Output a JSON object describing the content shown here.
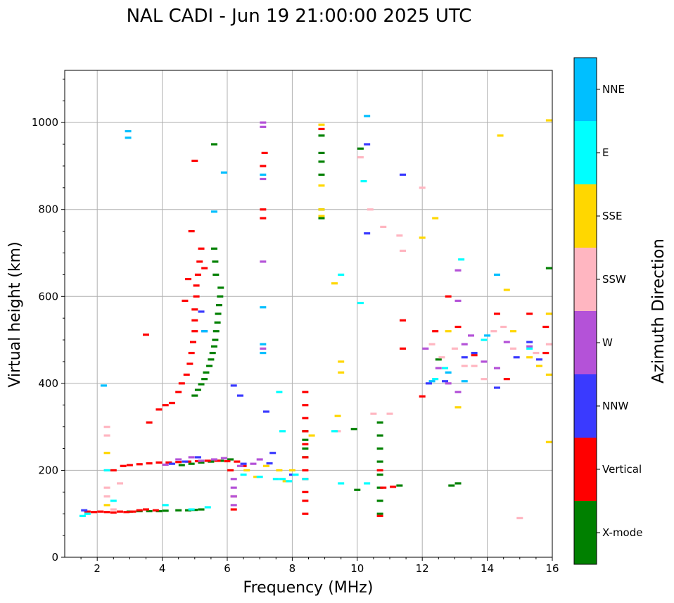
{
  "chart_data": {
    "type": "scatter",
    "title": "NAL CADI - Jun 19 21:00:00 2025 UTC",
    "xlabel": "Frequency (MHz)",
    "ylabel": "Virtual height (km)",
    "xlim": [
      1,
      16
    ],
    "ylim": [
      0,
      1120
    ],
    "xticks": [
      2,
      4,
      6,
      8,
      10,
      12,
      14,
      16
    ],
    "yticks": [
      0,
      200,
      400,
      600,
      800,
      1000
    ],
    "grid": true,
    "colorbar": {
      "title": "Azimuth Direction",
      "categories": [
        {
          "label": "X-mode",
          "color": "#008000"
        },
        {
          "label": "Vertical",
          "color": "#ff0000"
        },
        {
          "label": "NNW",
          "color": "#3a3aff"
        },
        {
          "label": "W",
          "color": "#b452d8"
        },
        {
          "label": "SSW",
          "color": "#ffb6c1"
        },
        {
          "label": "SSE",
          "color": "#ffd700"
        },
        {
          "label": "E",
          "color": "#00ffff"
        },
        {
          "label": "NNE",
          "color": "#00bfff"
        }
      ]
    },
    "series": [
      {
        "name": "X-mode",
        "points": [
          [
            3.0,
            105
          ],
          [
            3.3,
            106
          ],
          [
            3.6,
            106
          ],
          [
            3.9,
            106
          ],
          [
            4.1,
            107
          ],
          [
            4.5,
            108
          ],
          [
            4.8,
            108
          ],
          [
            5.0,
            109
          ],
          [
            5.2,
            110
          ],
          [
            4.6,
            212
          ],
          [
            4.9,
            215
          ],
          [
            5.2,
            218
          ],
          [
            5.5,
            220
          ],
          [
            5.8,
            222
          ],
          [
            6.1,
            225
          ],
          [
            5.0,
            372
          ],
          [
            5.1,
            385
          ],
          [
            5.2,
            398
          ],
          [
            5.3,
            410
          ],
          [
            5.35,
            425
          ],
          [
            5.45,
            440
          ],
          [
            5.5,
            455
          ],
          [
            5.55,
            470
          ],
          [
            5.6,
            485
          ],
          [
            5.63,
            500
          ],
          [
            5.66,
            520
          ],
          [
            5.7,
            540
          ],
          [
            5.72,
            560
          ],
          [
            5.75,
            580
          ],
          [
            5.78,
            600
          ],
          [
            5.8,
            620
          ],
          [
            5.65,
            650
          ],
          [
            5.63,
            680
          ],
          [
            5.6,
            710
          ],
          [
            8.4,
            250
          ],
          [
            8.4,
            270
          ],
          [
            8.4,
            290
          ],
          [
            8.4,
            230
          ],
          [
            8.9,
            780
          ],
          [
            8.9,
            800
          ],
          [
            8.9,
            880
          ],
          [
            8.9,
            910
          ],
          [
            8.9,
            930
          ],
          [
            8.9,
            970
          ],
          [
            9.9,
            295
          ],
          [
            10.0,
            155
          ],
          [
            10.1,
            940
          ],
          [
            10.7,
            100
          ],
          [
            10.7,
            130
          ],
          [
            10.7,
            160
          ],
          [
            10.7,
            190
          ],
          [
            10.7,
            220
          ],
          [
            10.7,
            250
          ],
          [
            10.7,
            280
          ],
          [
            10.7,
            310
          ],
          [
            11.3,
            165
          ],
          [
            12.5,
            455
          ],
          [
            12.9,
            165
          ],
          [
            13.1,
            170
          ],
          [
            15.9,
            665
          ],
          [
            5.6,
            950
          ]
        ]
      },
      {
        "name": "Vertical",
        "points": [
          [
            1.7,
            105
          ],
          [
            1.9,
            104
          ],
          [
            2.1,
            105
          ],
          [
            2.3,
            104
          ],
          [
            2.5,
            103
          ],
          [
            2.7,
            105
          ],
          [
            2.9,
            104
          ],
          [
            3.1,
            105
          ],
          [
            3.3,
            108
          ],
          [
            3.5,
            110
          ],
          [
            3.8,
            108
          ],
          [
            2.5,
            200
          ],
          [
            2.8,
            210
          ],
          [
            3.0,
            212
          ],
          [
            3.3,
            214
          ],
          [
            3.6,
            216
          ],
          [
            3.9,
            218
          ],
          [
            4.2,
            218
          ],
          [
            4.5,
            219
          ],
          [
            4.8,
            220
          ],
          [
            5.1,
            221
          ],
          [
            5.4,
            222
          ],
          [
            5.7,
            222
          ],
          [
            6.0,
            221
          ],
          [
            6.3,
            220
          ],
          [
            3.6,
            310
          ],
          [
            3.9,
            340
          ],
          [
            4.1,
            350
          ],
          [
            4.3,
            355
          ],
          [
            4.5,
            380
          ],
          [
            4.6,
            400
          ],
          [
            4.75,
            420
          ],
          [
            4.85,
            445
          ],
          [
            4.9,
            470
          ],
          [
            4.95,
            495
          ],
          [
            5.0,
            520
          ],
          [
            5.0,
            545
          ],
          [
            5.0,
            570
          ],
          [
            5.05,
            600
          ],
          [
            5.05,
            625
          ],
          [
            5.1,
            650
          ],
          [
            5.15,
            680
          ],
          [
            5.2,
            710
          ],
          [
            4.7,
            590
          ],
          [
            4.8,
            640
          ],
          [
            4.9,
            750
          ],
          [
            5.3,
            665
          ],
          [
            5.0,
            912
          ],
          [
            3.5,
            512
          ],
          [
            6.1,
            200
          ],
          [
            6.2,
            140
          ],
          [
            6.2,
            110
          ],
          [
            6.5,
            210
          ],
          [
            7.1,
            780
          ],
          [
            7.1,
            800
          ],
          [
            7.1,
            900
          ],
          [
            7.15,
            930
          ],
          [
            8.4,
            100
          ],
          [
            8.4,
            130
          ],
          [
            8.4,
            150
          ],
          [
            8.4,
            180
          ],
          [
            8.4,
            200
          ],
          [
            8.4,
            230
          ],
          [
            8.4,
            260
          ],
          [
            8.4,
            290
          ],
          [
            8.4,
            320
          ],
          [
            8.4,
            350
          ],
          [
            8.4,
            380
          ],
          [
            8.9,
            985
          ],
          [
            10.7,
            95
          ],
          [
            10.7,
            200
          ],
          [
            10.8,
            160
          ],
          [
            11.1,
            162
          ],
          [
            11.4,
            545
          ],
          [
            11.4,
            480
          ],
          [
            12.0,
            370
          ],
          [
            12.4,
            520
          ],
          [
            12.8,
            600
          ],
          [
            13.1,
            530
          ],
          [
            13.6,
            465
          ],
          [
            14.3,
            560
          ],
          [
            14.6,
            410
          ],
          [
            15.3,
            560
          ],
          [
            15.8,
            530
          ],
          [
            15.8,
            470
          ]
        ]
      },
      {
        "name": "NNW",
        "points": [
          [
            1.6,
            108
          ],
          [
            4.3,
            215
          ],
          [
            4.7,
            220
          ],
          [
            5.1,
            230
          ],
          [
            5.3,
            520
          ],
          [
            5.2,
            565
          ],
          [
            6.2,
            395
          ],
          [
            6.4,
            372
          ],
          [
            7.2,
            335
          ],
          [
            7.4,
            240
          ],
          [
            8.0,
            190
          ],
          [
            10.3,
            950
          ],
          [
            10.3,
            745
          ],
          [
            11.4,
            880
          ],
          [
            12.2,
            400
          ],
          [
            12.7,
            405
          ],
          [
            13.3,
            460
          ],
          [
            13.6,
            470
          ],
          [
            14.3,
            390
          ],
          [
            14.9,
            460
          ],
          [
            15.3,
            495
          ],
          [
            15.6,
            455
          ],
          [
            6.5,
            215
          ],
          [
            7.3,
            216
          ]
        ]
      },
      {
        "name": "W",
        "points": [
          [
            4.1,
            213
          ],
          [
            4.5,
            225
          ],
          [
            4.9,
            230
          ],
          [
            5.2,
            222
          ],
          [
            5.6,
            225
          ],
          [
            5.9,
            228
          ],
          [
            6.2,
            180
          ],
          [
            6.2,
            160
          ],
          [
            6.2,
            140
          ],
          [
            6.2,
            120
          ],
          [
            6.4,
            210
          ],
          [
            6.8,
            215
          ],
          [
            7.0,
            225
          ],
          [
            7.1,
            990
          ],
          [
            7.1,
            1000
          ],
          [
            7.1,
            870
          ],
          [
            7.1,
            680
          ],
          [
            7.1,
            480
          ],
          [
            12.1,
            480
          ],
          [
            12.5,
            435
          ],
          [
            12.8,
            400
          ],
          [
            13.1,
            380
          ],
          [
            13.3,
            490
          ],
          [
            13.5,
            510
          ],
          [
            13.9,
            450
          ],
          [
            14.3,
            435
          ],
          [
            14.6,
            495
          ],
          [
            15.3,
            485
          ],
          [
            13.1,
            590
          ],
          [
            13.1,
            660
          ]
        ]
      },
      {
        "name": "SSW",
        "points": [
          [
            2.3,
            300
          ],
          [
            2.3,
            280
          ],
          [
            2.3,
            160
          ],
          [
            2.3,
            140
          ],
          [
            2.3,
            200
          ],
          [
            2.5,
            110
          ],
          [
            2.7,
            170
          ],
          [
            9.4,
            290
          ],
          [
            10.1,
            920
          ],
          [
            10.4,
            800
          ],
          [
            10.5,
            330
          ],
          [
            10.8,
            760
          ],
          [
            11.0,
            330
          ],
          [
            11.3,
            740
          ],
          [
            11.4,
            705
          ],
          [
            12.0,
            850
          ],
          [
            12.3,
            490
          ],
          [
            12.6,
            460
          ],
          [
            13.0,
            480
          ],
          [
            13.3,
            440
          ],
          [
            13.6,
            440
          ],
          [
            13.9,
            410
          ],
          [
            14.2,
            520
          ],
          [
            14.5,
            530
          ],
          [
            14.8,
            480
          ],
          [
            15.0,
            90
          ],
          [
            15.5,
            470
          ],
          [
            15.9,
            560
          ],
          [
            15.9,
            490
          ]
        ]
      },
      {
        "name": "SSE",
        "points": [
          [
            2.3,
            120
          ],
          [
            2.3,
            240
          ],
          [
            6.6,
            200
          ],
          [
            6.9,
            185
          ],
          [
            7.2,
            210
          ],
          [
            7.6,
            200
          ],
          [
            7.8,
            175
          ],
          [
            8.0,
            200
          ],
          [
            8.9,
            785
          ],
          [
            8.9,
            800
          ],
          [
            8.9,
            855
          ],
          [
            8.9,
            995
          ],
          [
            8.6,
            280
          ],
          [
            9.3,
            630
          ],
          [
            9.5,
            425
          ],
          [
            9.5,
            450
          ],
          [
            9.4,
            325
          ],
          [
            12.0,
            735
          ],
          [
            12.4,
            780
          ],
          [
            12.8,
            520
          ],
          [
            13.1,
            345
          ],
          [
            14.4,
            970
          ],
          [
            14.6,
            615
          ],
          [
            14.8,
            520
          ],
          [
            15.3,
            460
          ],
          [
            15.6,
            440
          ],
          [
            15.9,
            1005
          ],
          [
            15.9,
            560
          ],
          [
            15.9,
            265
          ],
          [
            15.9,
            420
          ]
        ]
      },
      {
        "name": "E",
        "points": [
          [
            1.55,
            95
          ],
          [
            1.7,
            100
          ],
          [
            2.3,
            200
          ],
          [
            2.5,
            130
          ],
          [
            4.1,
            120
          ],
          [
            4.9,
            110
          ],
          [
            5.4,
            115
          ],
          [
            6.5,
            190
          ],
          [
            7.0,
            185
          ],
          [
            7.5,
            180
          ],
          [
            7.7,
            180
          ],
          [
            7.9,
            175
          ],
          [
            8.1,
            190
          ],
          [
            8.4,
            180
          ],
          [
            9.5,
            170
          ],
          [
            9.3,
            290
          ],
          [
            10.3,
            170
          ],
          [
            10.1,
            585
          ],
          [
            7.6,
            380
          ],
          [
            7.7,
            290
          ],
          [
            9.5,
            650
          ],
          [
            10.2,
            865
          ],
          [
            12.4,
            410
          ],
          [
            12.7,
            435
          ],
          [
            13.2,
            685
          ],
          [
            13.9,
            500
          ],
          [
            15.3,
            480
          ]
        ]
      },
      {
        "name": "NNE",
        "points": [
          [
            2.2,
            395
          ],
          [
            2.95,
            965
          ],
          [
            2.95,
            980
          ],
          [
            5.9,
            885
          ],
          [
            5.3,
            520
          ],
          [
            5.6,
            795
          ],
          [
            7.1,
            575
          ],
          [
            7.1,
            490
          ],
          [
            7.1,
            470
          ],
          [
            7.1,
            880
          ],
          [
            10.3,
            1015
          ],
          [
            12.3,
            405
          ],
          [
            12.8,
            425
          ],
          [
            13.3,
            405
          ],
          [
            14.0,
            510
          ],
          [
            14.3,
            650
          ]
        ]
      }
    ]
  }
}
